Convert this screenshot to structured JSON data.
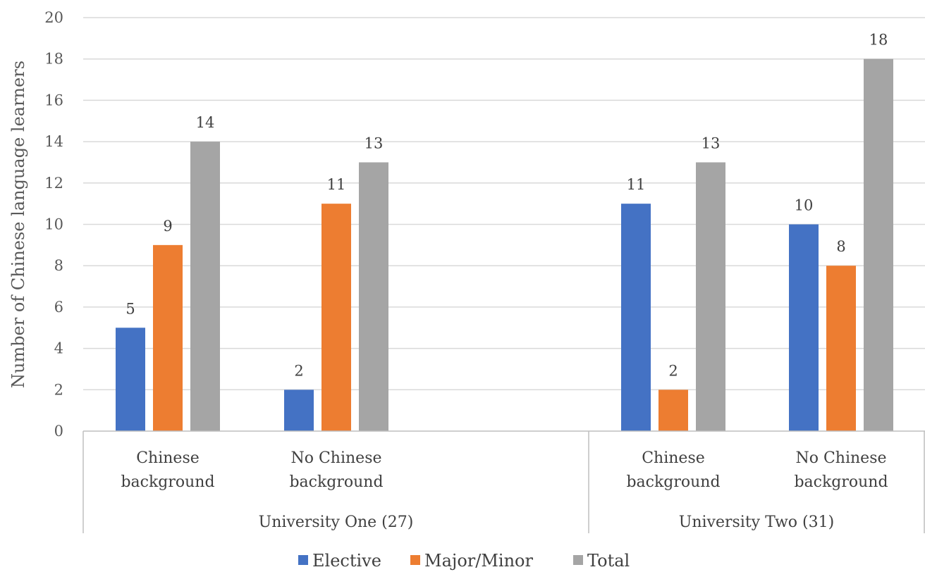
{
  "chart_data": {
    "type": "bar",
    "title": "",
    "ylabel": "Number of Chinese language learners",
    "xlabel": "",
    "ylim": [
      0,
      20
    ],
    "yticks": [
      0,
      2,
      4,
      6,
      8,
      10,
      12,
      14,
      16,
      18,
      20
    ],
    "grid": true,
    "legend_position": "bottom",
    "groups": [
      {
        "label": "University One (27)",
        "categories": [
          "Chinese background",
          "No Chinese background"
        ]
      },
      {
        "label": "University Two (31)",
        "categories": [
          "Chinese background",
          "No Chinese background"
        ]
      }
    ],
    "series": [
      {
        "name": "Elective",
        "color": "#4472c4",
        "values": [
          5,
          2,
          11,
          10
        ]
      },
      {
        "name": "Major/Minor",
        "color": "#ed7d31",
        "values": [
          9,
          11,
          2,
          8
        ]
      },
      {
        "name": "Total",
        "color": "#a5a5a5",
        "values": [
          14,
          13,
          13,
          18
        ]
      }
    ],
    "colors": {
      "grid": "#d9d9d9",
      "axis": "#bfbfbf"
    }
  }
}
